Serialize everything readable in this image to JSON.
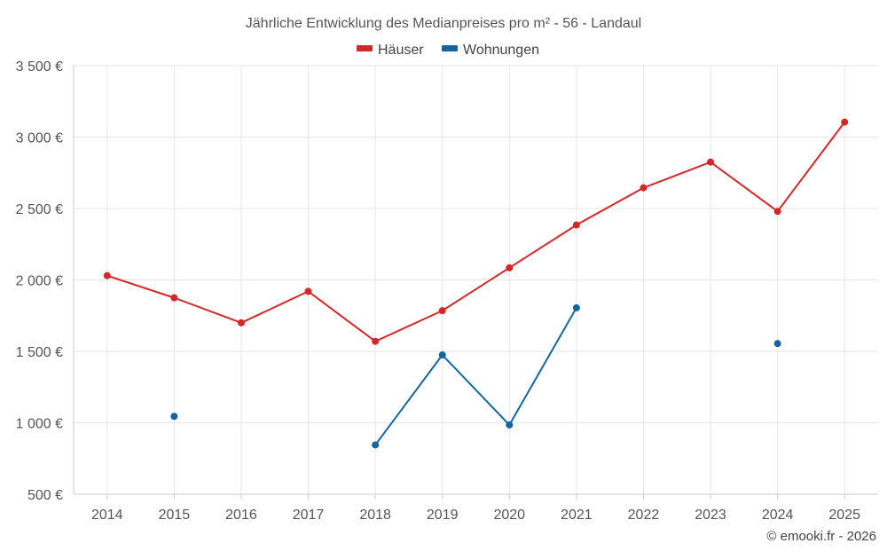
{
  "chart_data": {
    "type": "line",
    "title": "Jährliche Entwicklung des Medianpreises pro m² - 56 - Landaul",
    "categories": [
      "2014",
      "2015",
      "2016",
      "2017",
      "2018",
      "2019",
      "2020",
      "2021",
      "2022",
      "2023",
      "2024",
      "2025"
    ],
    "series": [
      {
        "name": "Häuser",
        "color": "#d62728",
        "values": [
          2030,
          1875,
          1700,
          1920,
          1570,
          1785,
          2085,
          2385,
          2645,
          2825,
          2480,
          3105
        ]
      },
      {
        "name": "Wohnungen",
        "color": "#1565a0",
        "values": [
          null,
          1045,
          null,
          null,
          845,
          1475,
          985,
          1805,
          null,
          null,
          1555,
          null
        ]
      }
    ],
    "ylim": [
      500,
      3500
    ],
    "yticks": [
      500,
      1000,
      1500,
      2000,
      2500,
      3000,
      3500
    ],
    "ytick_labels": [
      "500 €",
      "1 000 €",
      "1 500 €",
      "2 000 €",
      "2 500 €",
      "3 000 €",
      "3 500 €"
    ],
    "xlabel": "",
    "ylabel": "",
    "grid": true,
    "legend_position": "top-center"
  },
  "credit": "© emooki.fr - 2026"
}
